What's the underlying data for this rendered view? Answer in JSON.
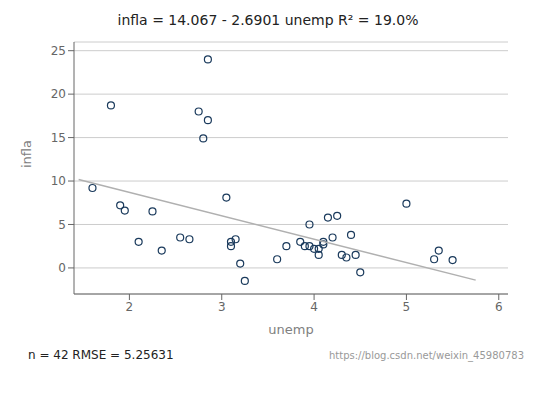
{
  "chart_data": {
    "type": "scatter",
    "title": "infla = 14.067 - 2.6901 unemp    R² = 19.0%",
    "xlabel": "unemp",
    "ylabel": "infla",
    "xlim": [
      1.4,
      6.1
    ],
    "ylim": [
      -3,
      26
    ],
    "xticks": [
      2,
      3,
      4,
      5,
      6
    ],
    "yticks": [
      0,
      5,
      10,
      15,
      20,
      25
    ],
    "grid": "y",
    "annotations": [
      "n = 42   RMSE = 5.25631",
      "https://blog.csdn.net/weixin_45980783"
    ],
    "series": [
      {
        "type": "scatter",
        "color": "#1a3a5c",
        "marker": "circle",
        "x": [
          1.6,
          1.8,
          1.9,
          1.95,
          2.1,
          2.25,
          2.35,
          2.55,
          2.65,
          2.75,
          2.8,
          2.85,
          2.85,
          3.05,
          3.1,
          3.1,
          3.15,
          3.2,
          3.25,
          3.6,
          3.7,
          3.85,
          3.9,
          3.95,
          3.95,
          4.0,
          4.05,
          4.05,
          4.1,
          4.1,
          4.15,
          4.2,
          4.25,
          4.3,
          4.35,
          4.4,
          4.45,
          4.5,
          5.0,
          5.3,
          5.35,
          5.5
        ],
        "values": [
          9.2,
          18.7,
          7.2,
          6.6,
          3.0,
          6.5,
          2.0,
          3.5,
          3.3,
          18.0,
          14.9,
          17.0,
          24.0,
          8.1,
          3.0,
          2.5,
          3.3,
          0.5,
          -1.5,
          1.0,
          2.5,
          3.0,
          2.5,
          2.5,
          5.0,
          2.2,
          1.5,
          2.2,
          3.0,
          2.7,
          5.8,
          3.5,
          6.0,
          1.5,
          1.2,
          3.8,
          1.5,
          -0.5,
          7.4,
          1.0,
          2.0,
          0.9
        ]
      },
      {
        "type": "line",
        "color": "#b0b0b0",
        "line_style": "solid",
        "x": [
          1.45,
          5.75
        ],
        "values": [
          10.166355,
          -1.401075
        ]
      }
    ]
  }
}
